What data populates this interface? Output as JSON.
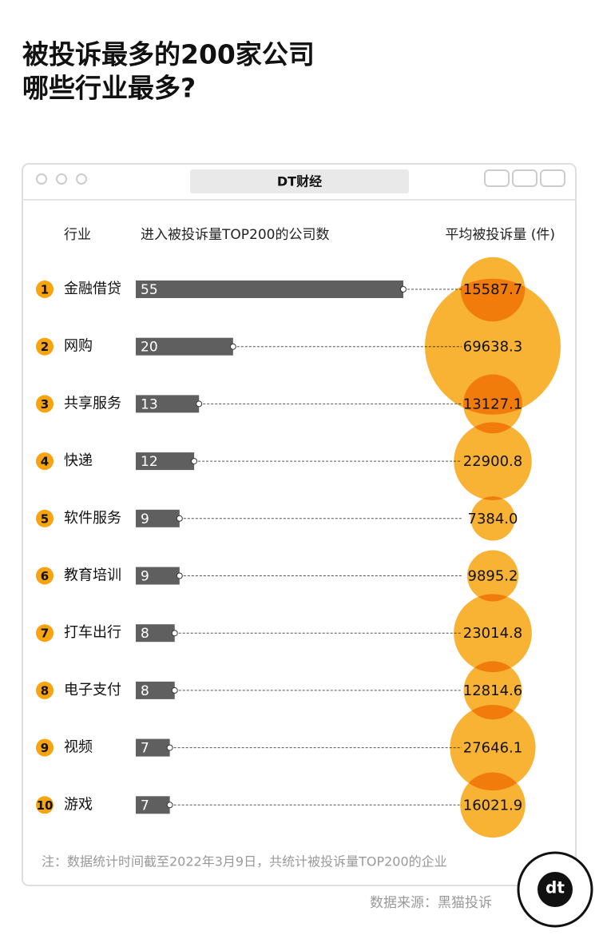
{
  "header": {
    "title_lines": [
      "被投诉最多的200家公司",
      "哪些行业最多?"
    ]
  },
  "window_title": "DT财经",
  "chart_data": {
    "type": "bar",
    "category_label": "行业",
    "ranks": [
      1,
      2,
      3,
      4,
      5,
      6,
      7,
      8,
      9,
      10
    ],
    "categories": [
      "金融借贷",
      "网购",
      "共享服务",
      "快递",
      "软件服务",
      "教育培训",
      "打车出行",
      "电子支付",
      "视频",
      "游戏"
    ],
    "series": [
      {
        "name": "进入被投诉量TOP200的公司数",
        "color": "#5f5f5f",
        "values": [
          55,
          20,
          13,
          12,
          9,
          9,
          8,
          8,
          7,
          7
        ]
      },
      {
        "name": "平均被投诉量 (件)",
        "color": "#f7a410",
        "values": [
          15587.7,
          69638.3,
          13127.1,
          22900.8,
          7384.0,
          9895.2,
          23014.8,
          12814.6,
          27646.1,
          16021.9
        ],
        "value_labels": [
          "15587.7",
          "69638.3",
          "13127.1",
          "22900.8",
          "7384.0",
          "9895.2",
          "23014.8",
          "12814.6",
          "27646.1",
          "16021.9"
        ]
      }
    ]
  },
  "note": "注：数据统计时间截至2022年3月9日，共统计被投诉量TOP200的企业",
  "source": "数据来源：黑猫投诉",
  "logo": "dt"
}
